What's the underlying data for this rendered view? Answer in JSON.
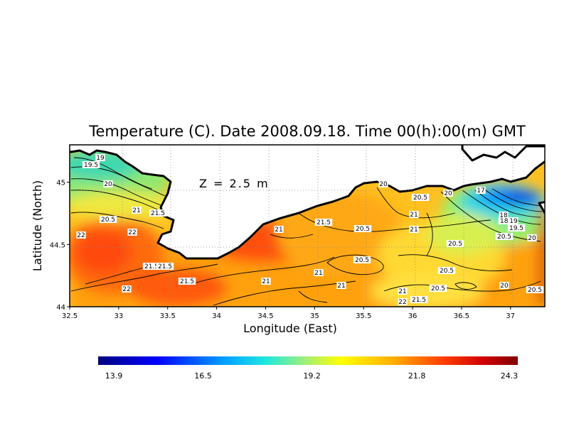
{
  "chart_data": {
    "type": "heatmap",
    "title": "Temperature (C). Date 2008.09.18. Time 00(h):00(m) GMT",
    "xlabel": "Longitude (East)",
    "ylabel": "Latitude (North)",
    "annotation": "Z = 2.5 m",
    "xlim": [
      32.5,
      37.35
    ],
    "ylim": [
      44.0,
      45.3
    ],
    "x_ticks": [
      "32.5",
      "33",
      "33.5",
      "34",
      "34.5",
      "35",
      "35.5",
      "36",
      "36.5",
      "37"
    ],
    "y_ticks": [
      "44",
      "44.5",
      "45"
    ],
    "grid": true,
    "colorbar": {
      "min": 13.9,
      "max": 24.3,
      "ticks": [
        "13.9",
        "16.5",
        "19.2",
        "21.8",
        "24.3"
      ]
    },
    "contour_labels": [
      "19",
      "19.5",
      "20",
      "21",
      "21.5",
      "20.5",
      "22",
      "22",
      "21",
      "21.5",
      "21.5",
      "21.5",
      "22",
      "21.5",
      "21",
      "20.5",
      "21",
      "21",
      "21",
      "20",
      "20.5",
      "20",
      "21",
      "20.5",
      "21",
      "20.5",
      "20.5",
      "20.5",
      "17",
      "18",
      "18.5",
      "19",
      "19.5",
      "20.5",
      "20",
      "20",
      "20.5",
      "21.5",
      "22"
    ]
  }
}
